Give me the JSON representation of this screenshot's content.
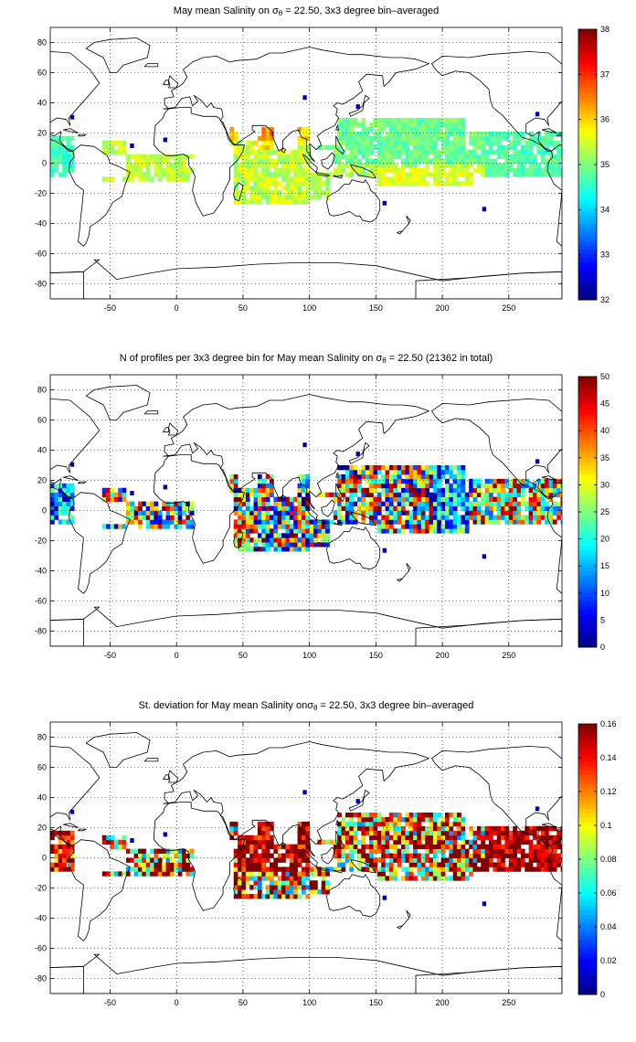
{
  "maps": [
    {
      "title_pre": "May mean Salinity on ",
      "title_sym": "σ",
      "title_sub": "θ",
      "title_post": " = 22.50, 3x3 degree bin–averaged",
      "colorbar_ticks": [
        "32",
        "33",
        "34",
        "35",
        "36",
        "37",
        "38"
      ],
      "colorbar_range": [
        32,
        38
      ],
      "colormap": "jet",
      "field": "salinity"
    },
    {
      "title_pre": "N of profiles per 3x3 degree bin for May mean Salinity on ",
      "title_sym": "σ",
      "title_sub": "θ",
      "title_post": " = 22.50 (21362 in total)",
      "colorbar_ticks": [
        "0",
        "5",
        "10",
        "15",
        "20",
        "25",
        "30",
        "35",
        "40",
        "45",
        "50"
      ],
      "colorbar_range": [
        0,
        50
      ],
      "colormap": "jet",
      "field": "count"
    },
    {
      "title_pre": "St. deviation for May mean Salinity on",
      "title_sym": "σ",
      "title_sub": "θ",
      "title_post": " = 22.50, 3x3 degree bin–averaged",
      "colorbar_ticks": [
        "0",
        "0.02",
        "0.04",
        "0.06",
        "0.08",
        "0.1",
        "0.12",
        "0.14",
        "0.16"
      ],
      "colorbar_range": [
        0,
        0.16
      ],
      "colormap": "jet",
      "field": "stdev"
    }
  ],
  "axes": {
    "x_ticks": [
      "-50",
      "0",
      "50",
      "100",
      "150",
      "200",
      "250"
    ],
    "y_ticks": [
      "80",
      "60",
      "40",
      "20",
      "0",
      "-20",
      "-40",
      "-60",
      "-80"
    ],
    "xlim": [
      -95,
      290
    ],
    "ylim": [
      -90,
      90
    ],
    "grid": "dotted"
  }
}
